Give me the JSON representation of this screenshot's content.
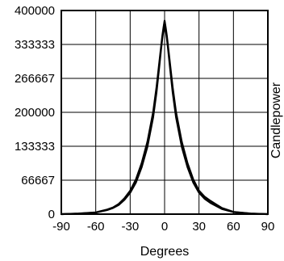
{
  "chart_data": {
    "type": "line",
    "title": "",
    "xlabel": "Degrees",
    "ylabel": "Candlepower",
    "xlim": [
      -90,
      90
    ],
    "ylim": [
      0,
      400000
    ],
    "x_ticks": [
      -90,
      -60,
      -30,
      0,
      30,
      60,
      90
    ],
    "x_tick_labels": [
      "-90",
      "-60",
      "-30",
      "0",
      "30",
      "60",
      "90"
    ],
    "y_ticks": [
      0,
      66667,
      133333,
      200000,
      266667,
      333333,
      400000
    ],
    "y_tick_labels": [
      "0",
      "66667",
      "133333",
      "200000",
      "266667",
      "333333",
      "400000"
    ],
    "grid": true,
    "series": [
      {
        "x": [
          -90,
          -75,
          -60,
          -50,
          -45,
          -40,
          -35,
          -30,
          -25,
          -20,
          -15,
          -10,
          -7,
          -5,
          -3,
          -2,
          -1,
          0,
          1,
          2,
          3,
          5,
          7,
          10,
          15,
          20,
          25,
          30,
          35,
          40,
          45,
          50,
          60,
          75,
          90
        ],
        "values": [
          0,
          1000,
          3000,
          8000,
          12000,
          18000,
          28000,
          42000,
          62000,
          92000,
          132000,
          190000,
          240000,
          282000,
          325000,
          345000,
          362000,
          378000,
          362000,
          345000,
          325000,
          282000,
          240000,
          190000,
          132000,
          92000,
          62000,
          42000,
          30000,
          22000,
          16000,
          10000,
          4000,
          1000,
          0
        ]
      },
      {
        "x": [
          -90,
          -75,
          -60,
          -50,
          -45,
          -40,
          -35,
          -30,
          -25,
          -20,
          -15,
          -10,
          -7,
          -5,
          -3,
          -2,
          -1,
          0,
          1,
          2,
          3,
          5,
          7,
          10,
          15,
          20,
          25,
          30,
          35,
          40,
          45,
          50,
          60,
          75,
          90
        ],
        "values": [
          0,
          1200,
          3500,
          9000,
          13000,
          20000,
          31000,
          46000,
          68000,
          100000,
          142000,
          200000,
          250000,
          290000,
          330000,
          350000,
          366000,
          380000,
          366000,
          350000,
          330000,
          290000,
          250000,
          200000,
          142000,
          100000,
          68000,
          46000,
          34000,
          26000,
          19000,
          12000,
          4500,
          1200,
          0
        ]
      }
    ]
  }
}
